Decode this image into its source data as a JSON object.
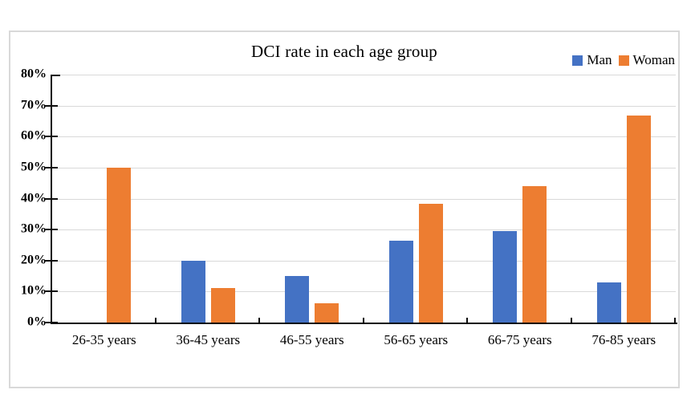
{
  "chart_data": {
    "type": "bar",
    "title": "DCI rate in each age group",
    "categories": [
      "26-35 years",
      "36-45 years",
      "46-55 years",
      "56-65 years",
      "66-75 years",
      "76-85 years"
    ],
    "series": [
      {
        "name": "Man",
        "color": "#4472C4",
        "values": [
          0,
          20,
          15,
          26.3,
          29.4,
          13
        ]
      },
      {
        "name": "Woman",
        "color": "#ED7D31",
        "values": [
          50,
          11.1,
          6.3,
          38.3,
          44,
          66.7
        ]
      }
    ],
    "xlabel": "",
    "ylabel": "",
    "y_axis": {
      "min": 0,
      "max": 80,
      "step": 10,
      "tick_labels": [
        "0%",
        "10%",
        "20%",
        "30%",
        "40%",
        "50%",
        "60%",
        "70%",
        "80%"
      ],
      "unit": "percent"
    },
    "ylim": [
      0,
      80
    ],
    "grid": true,
    "legend_position": "top-right",
    "colors": {
      "gridline": "#D9D9D9",
      "axis": "#0D0D0D",
      "frame_border": "#D9D9D9",
      "background": "#FFFFFF"
    }
  }
}
